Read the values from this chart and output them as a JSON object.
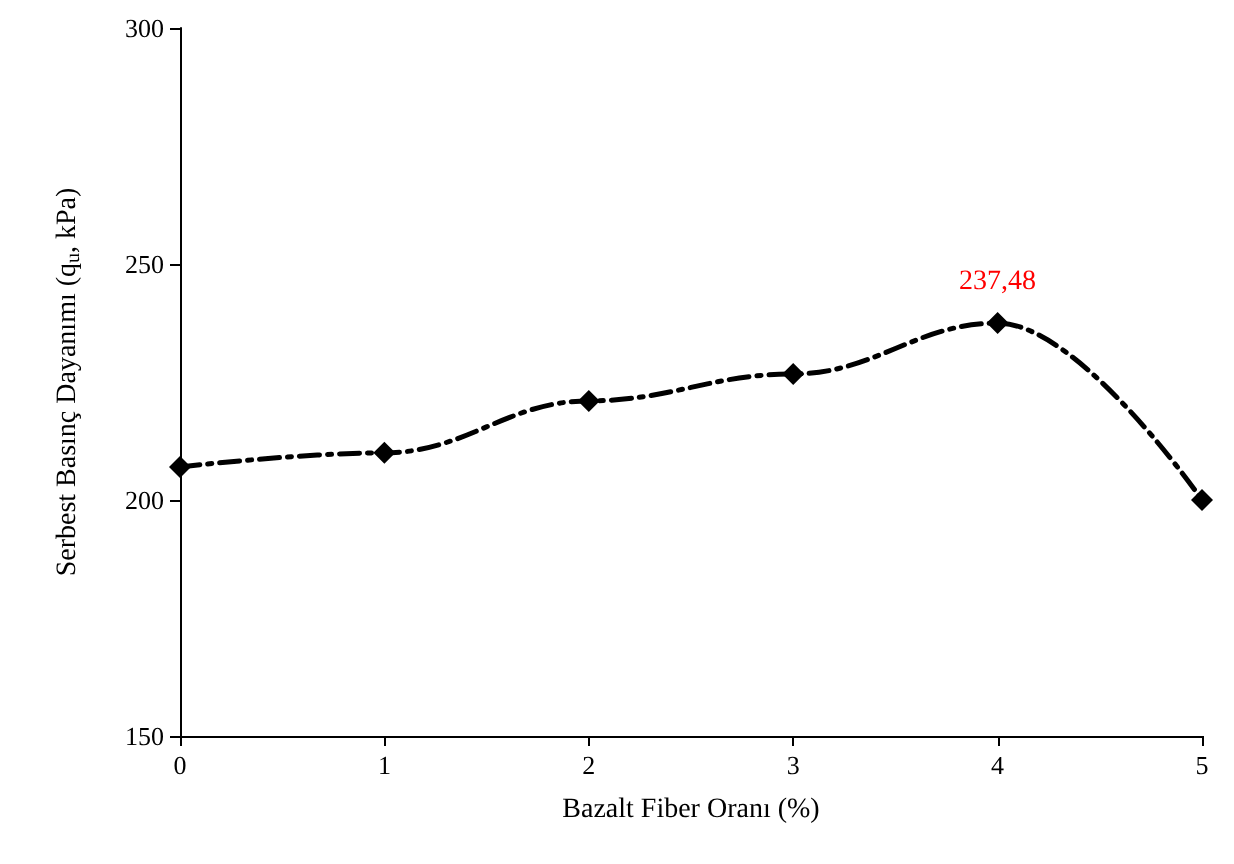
{
  "chart_data": {
    "type": "line",
    "xlabel": "Bazalt Fiber Oranı (%)",
    "ylabel": "Serbest Basınç Dayanımı (q$_{u}$, kPa)",
    "x": [
      0,
      1,
      2,
      3,
      4,
      5
    ],
    "series": [
      {
        "color": "#000000",
        "values": [
          207,
          210,
          221,
          226.7,
          237.48,
          200
        ],
        "value_labels": [
          null,
          null,
          null,
          null,
          "237,48",
          null
        ]
      }
    ],
    "xlim": [
      0,
      5
    ],
    "xticks": [
      0,
      1,
      2,
      3,
      4,
      5
    ],
    "ylim": [
      150,
      300
    ],
    "yticks": [
      150,
      200,
      250,
      300
    ],
    "grid": false,
    "marker": "diamond",
    "line_style": "dashed"
  }
}
